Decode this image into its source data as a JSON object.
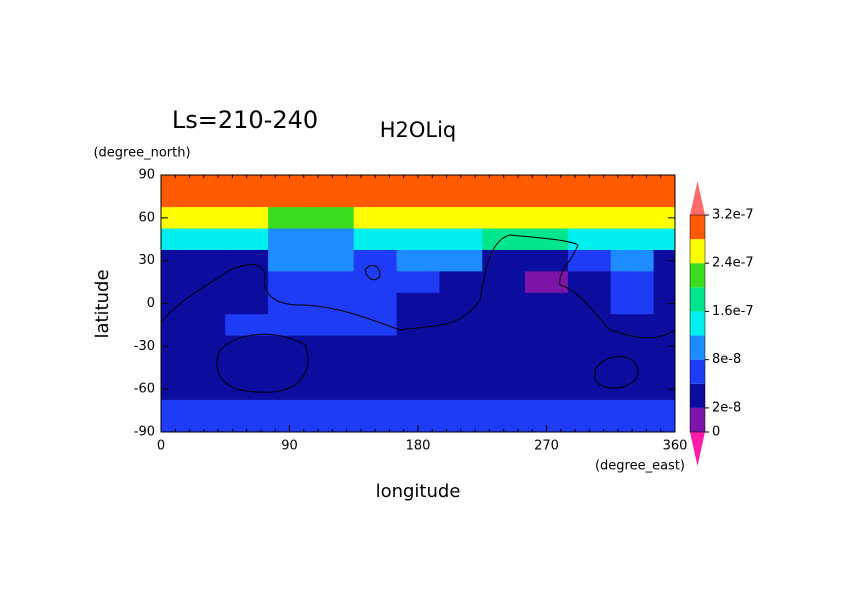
{
  "chart_data": {
    "type": "contour",
    "title": "H2OLiq",
    "subtitle": "Ls=210-240",
    "xlabel": "longitude",
    "ylabel": "latitude",
    "x_units": "(degree_east)",
    "y_units": "(degree_north)",
    "xlim": [
      0,
      360
    ],
    "xticks": [
      0,
      90,
      180,
      270,
      360
    ],
    "ylim": [
      -90,
      90
    ],
    "yticks": [
      -90,
      -60,
      -30,
      0,
      30,
      60,
      90
    ],
    "x": [
      0,
      30,
      60,
      90,
      120,
      150,
      180,
      210,
      240,
      270,
      300,
      330,
      360
    ],
    "y": [
      90,
      75,
      60,
      45,
      30,
      15,
      0,
      -15,
      -30,
      -45,
      -60,
      -75,
      -90
    ],
    "z": [
      [
        3e-07,
        3e-07,
        3e-07,
        3e-07,
        3e-07,
        3e-07,
        3e-07,
        3e-07,
        3e-07,
        3e-07,
        3e-07,
        3e-07,
        3e-07
      ],
      [
        3e-07,
        3e-07,
        3e-07,
        3e-07,
        3e-07,
        3e-07,
        3e-07,
        3e-07,
        3e-07,
        3e-07,
        3e-07,
        3e-07,
        3e-07
      ],
      [
        2.5e-07,
        2.5e-07,
        2.5e-07,
        2.2e-07,
        2.2e-07,
        2.5e-07,
        2.5e-07,
        2.5e-07,
        2.5e-07,
        2.6e-07,
        2.5e-07,
        2.5e-07,
        2.5e-07
      ],
      [
        1.4e-07,
        1.4e-07,
        1.5e-07,
        1e-07,
        1e-07,
        1.4e-07,
        1.5e-07,
        1.5e-07,
        1.7e-07,
        1.7e-07,
        1.5e-07,
        1.4e-07,
        1.4e-07
      ],
      [
        4e-08,
        3e-08,
        3e-08,
        1e-07,
        1e-07,
        6e-08,
        1e-07,
        9e-08,
        4e-08,
        3e-08,
        6e-08,
        9e-08,
        4e-08
      ],
      [
        3e-08,
        3e-08,
        3e-08,
        6e-08,
        6e-08,
        6e-08,
        6e-08,
        4e-08,
        3e-08,
        1e-08,
        3e-08,
        6e-08,
        3e-08
      ],
      [
        3e-08,
        3e-08,
        4e-08,
        6e-08,
        6e-08,
        6e-08,
        4e-08,
        3e-08,
        3e-08,
        3e-08,
        4e-08,
        6e-08,
        3e-08
      ],
      [
        3e-08,
        3e-08,
        6e-08,
        6e-08,
        6e-08,
        6e-08,
        3e-08,
        3e-08,
        3e-08,
        3e-08,
        3e-08,
        3e-08,
        3e-08
      ],
      [
        3e-08,
        3e-08,
        3e-08,
        3e-08,
        3e-08,
        3e-08,
        3e-08,
        3e-08,
        3e-08,
        3e-08,
        3e-08,
        3e-08,
        3e-08
      ],
      [
        3e-08,
        3e-08,
        3e-08,
        3e-08,
        3e-08,
        3e-08,
        3e-08,
        3e-08,
        3e-08,
        3e-08,
        3e-08,
        3e-08,
        3e-08
      ],
      [
        3e-08,
        3e-08,
        3e-08,
        3e-08,
        3e-08,
        3e-08,
        3e-08,
        3e-08,
        3e-08,
        3e-08,
        3e-08,
        3e-08,
        3e-08
      ],
      [
        6e-08,
        6e-08,
        6e-08,
        6e-08,
        6e-08,
        6e-08,
        6e-08,
        6e-08,
        6e-08,
        6e-08,
        6e-08,
        6e-08,
        6e-08
      ],
      [
        6e-08,
        6e-08,
        6e-08,
        6e-08,
        6e-08,
        6e-08,
        6e-08,
        6e-08,
        6e-08,
        6e-08,
        6e-08,
        6e-08,
        6e-08
      ]
    ],
    "levels": [
      0,
      2e-08,
      5e-08,
      8e-08,
      1.2e-07,
      1.6e-07,
      2e-07,
      2.4e-07,
      2.8e-07,
      3.2e-07
    ],
    "colors": [
      "#ff1aa8",
      "#7d14a8",
      "#0c0c9e",
      "#1e3cf5",
      "#1e8cff",
      "#00f0f0",
      "#00e68c",
      "#3cdc1e",
      "#ffff00",
      "#ff5a00",
      "#ff6a6a"
    ],
    "colorbar_ticks": [
      0,
      2e-08,
      8e-08,
      1.6e-07,
      2.4e-07,
      3.2e-07
    ]
  }
}
